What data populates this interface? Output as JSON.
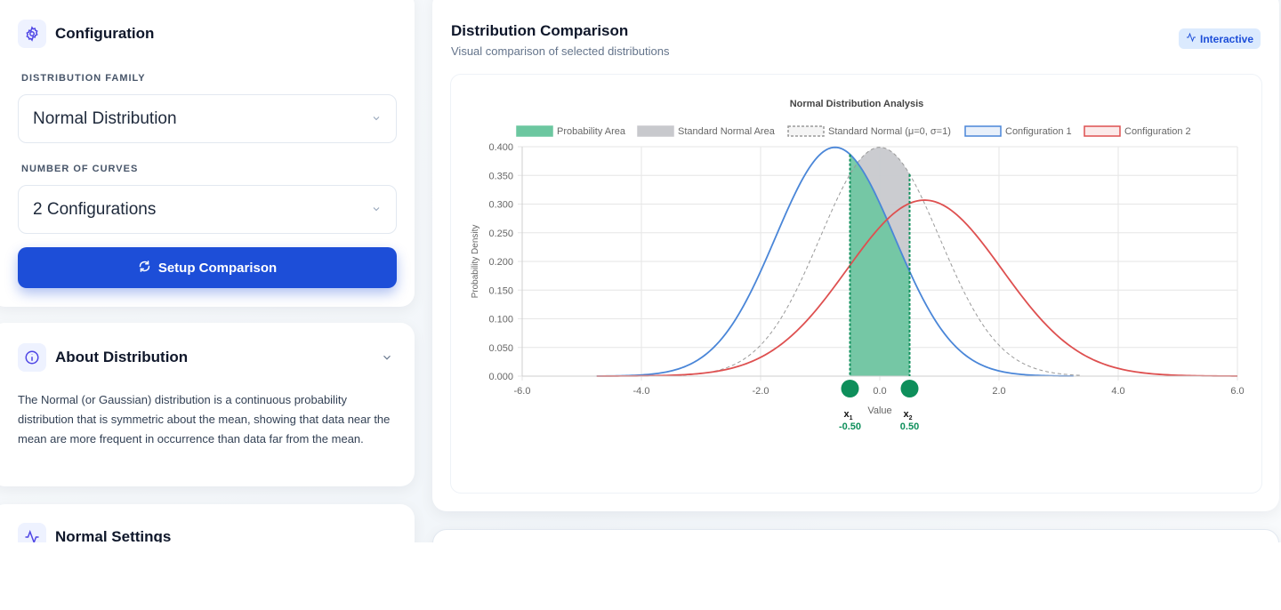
{
  "config": {
    "title": "Configuration",
    "family_label": "DISTRIBUTION FAMILY",
    "family_value": "Normal Distribution",
    "curves_label": "NUMBER OF CURVES",
    "curves_value": "2 Configurations",
    "setup_button": "Setup Comparison"
  },
  "about": {
    "title": "About Distribution",
    "text": "The Normal (or Gaussian) distribution is a continuous probability distribution that is symmetric about the mean, showing that data near the mean are more frequent in occurrence than data far from the mean."
  },
  "normal_settings": {
    "title": "Normal Settings"
  },
  "main": {
    "title": "Distribution Comparison",
    "subtitle": "Visual comparison of selected distributions",
    "badge": "Interactive"
  },
  "colors": {
    "config1": "#4a86d8",
    "config2": "#de5050",
    "prob_area": "#6cc7a0",
    "std_area": "#c8c9cd",
    "handle": "#0e8f5b",
    "primary": "#1d4ed8"
  },
  "chart_data": {
    "type": "line",
    "title": "Normal Distribution Analysis",
    "xlabel": "Value",
    "ylabel": "Probability Density",
    "xlim": [
      -6,
      6
    ],
    "ylim": [
      0,
      0.4
    ],
    "x_ticks": [
      "-6.0",
      "-4.0",
      "-2.0",
      "0.0",
      "2.0",
      "4.0",
      "6.0"
    ],
    "y_ticks": [
      "0.000",
      "0.050",
      "0.100",
      "0.150",
      "0.200",
      "0.250",
      "0.300",
      "0.350",
      "0.400"
    ],
    "grid": true,
    "legend_position": "top",
    "legend": [
      {
        "label": "Probability Area"
      },
      {
        "label": "Standard Normal Area"
      },
      {
        "label": "Standard Normal (μ=0, σ=1)"
      },
      {
        "label": "Configuration 1"
      },
      {
        "label": "Configuration 2"
      }
    ],
    "series": [
      {
        "name": "Standard Normal (μ=0, σ=1)",
        "mean": 0,
        "sd": 1,
        "range": [
          -3.4,
          3.4
        ],
        "style": "dashed"
      },
      {
        "name": "Configuration 1",
        "mean": -0.75,
        "sd": 1,
        "range": [
          -4.75,
          3.25
        ]
      },
      {
        "name": "Configuration 2",
        "mean": 0.75,
        "sd": 1.3,
        "range": [
          -4.75,
          6
        ]
      }
    ],
    "bounds": {
      "x1": {
        "label": "x",
        "sub": "1",
        "value": -0.5,
        "text": "-0.50"
      },
      "x2": {
        "label": "x",
        "sub": "2",
        "value": 0.5,
        "text": "0.50"
      }
    }
  }
}
